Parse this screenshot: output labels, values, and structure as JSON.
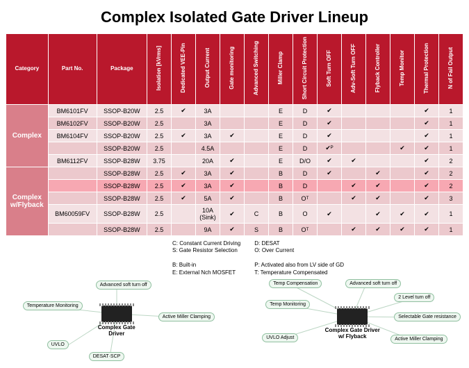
{
  "title": "Complex Isolated Gate Driver Lineup",
  "columns": [
    "Category",
    "Part No.",
    "Package",
    "Isolation [kVrms]",
    "Dedicated VEE-Pin",
    "Output Current",
    "Gate monitoring",
    "Advanced Switching",
    "Miller Clamp",
    "Short Circuit Protection",
    "Soft Turn OFF",
    "Adv-Soft Turn OFF",
    "Flyback Controller",
    "Temp Monitor",
    "Thermal Protection",
    "N of Fail Output"
  ],
  "categories": [
    {
      "name": "Complex",
      "rows": [
        {
          "cls": "r-light",
          "cells": [
            "BM6101FV",
            "SSOP-B20W",
            "2.5",
            "✔",
            "3A",
            "",
            "",
            "E",
            "D",
            "✔",
            "",
            "",
            "",
            "✔",
            "1"
          ]
        },
        {
          "cls": "r-dark",
          "cells": [
            "BM6102FV",
            "SSOP-B20W",
            "2.5",
            "",
            "3A",
            "",
            "",
            "E",
            "D",
            "✔",
            "",
            "",
            "",
            "✔",
            "1"
          ]
        },
        {
          "cls": "r-light",
          "cells": [
            "BM6104FV",
            "SSOP-B20W",
            "2.5",
            "✔",
            "3A",
            "✔",
            "",
            "E",
            "D",
            "✔",
            "",
            "",
            "",
            "✔",
            "1"
          ]
        },
        {
          "cls": "r-dark",
          "cells": [
            "",
            "SSOP-B20W",
            "2.5",
            "",
            "4.5A",
            "",
            "",
            "E",
            "D",
            "✔ᴾ",
            "",
            "",
            "✔",
            "✔",
            "1"
          ]
        },
        {
          "cls": "r-light",
          "cells": [
            "BM6112FV",
            "SSOP-B28W",
            "3.75",
            "",
            "20A",
            "✔",
            "",
            "E",
            "D/O",
            "✔",
            "✔",
            "",
            "",
            "✔",
            "2"
          ]
        }
      ]
    },
    {
      "name": "Complex w/Flyback",
      "rows": [
        {
          "cls": "r-dark",
          "cells": [
            "",
            "SSOP-B28W",
            "2.5",
            "✔",
            "3A",
            "✔",
            "",
            "B",
            "D",
            "✔",
            "",
            "✔",
            "",
            "✔",
            "2"
          ]
        },
        {
          "cls": "r-hl",
          "cells": [
            "",
            "SSOP-B28W",
            "2.5",
            "✔",
            "3A",
            "✔",
            "",
            "B",
            "D",
            "",
            "✔",
            "✔",
            "",
            "✔",
            "2"
          ]
        },
        {
          "cls": "r-dark",
          "cells": [
            "",
            "SSOP-B28W",
            "2.5",
            "✔",
            "5A",
            "✔",
            "",
            "B",
            "Oᵀ",
            "",
            "✔",
            "✔",
            "",
            "✔",
            "3"
          ]
        },
        {
          "cls": "r-light",
          "cells": [
            "BM60059FV",
            "SSOP-B28W",
            "2.5",
            "",
            "10A (Sink)",
            "✔",
            "C",
            "B",
            "O",
            "✔",
            "",
            "✔",
            "✔",
            "✔",
            "1"
          ]
        },
        {
          "cls": "r-dark",
          "cells": [
            "",
            "SSOP-B28W",
            "2.5",
            "",
            "9A",
            "✔",
            "S",
            "B",
            "Oᵀ",
            "",
            "✔",
            "✔",
            "✔",
            "✔",
            "1"
          ]
        }
      ]
    }
  ],
  "legend": {
    "col1": "C: Constant Current Driving\nS: Gate Resistor Selection\n\nB: Built-in\nE: External Nch MOSFET",
    "col2": "D: DESAT\nO: Over Current\n\nP: Activated also from LV side of GD\nT: Temperature Compensated"
  },
  "diagram1": {
    "chip_label": "Complex Gate Driver",
    "bubbles": [
      "Temperature Monitoring",
      "Advanced soft turn off",
      "Active Miller Clamping",
      "UVLO",
      "DESAT·SCP"
    ]
  },
  "diagram2": {
    "chip_label": "Complex Gate Driver w/ Flyback",
    "bubbles": [
      "Temp Compensation",
      "Advanced soft turn off",
      "Temp Monitoring",
      "2 Level turn off",
      "UVLO Adjust",
      "Selectable Gate resistance",
      "Active Miller Clamping"
    ]
  }
}
